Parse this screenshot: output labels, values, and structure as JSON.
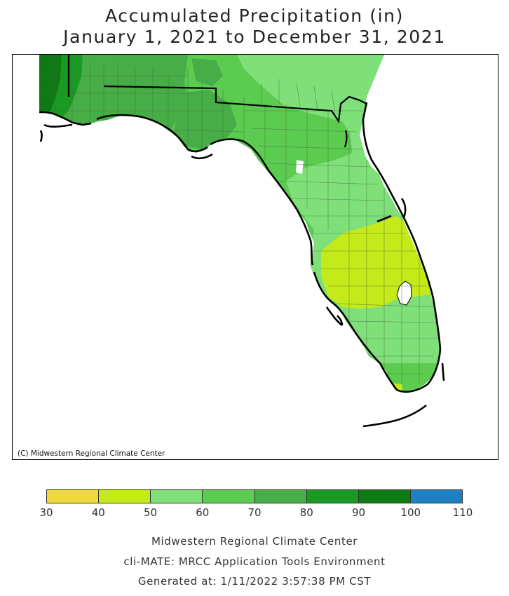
{
  "title_line1": "Accumulated Precipitation (in)",
  "title_line2": "January 1, 2021 to December 31, 2021",
  "copyright": "(C) Midwestern Regional Climate Center",
  "legend": {
    "bins": [
      {
        "range": [
          30,
          40
        ],
        "color": "#f2d93b"
      },
      {
        "range": [
          40,
          50
        ],
        "color": "#c5ea1a"
      },
      {
        "range": [
          50,
          60
        ],
        "color": "#7fe07a"
      },
      {
        "range": [
          60,
          70
        ],
        "color": "#5bcc50"
      },
      {
        "range": [
          70,
          80
        ],
        "color": "#46ad47"
      },
      {
        "range": [
          80,
          90
        ],
        "color": "#189a23"
      },
      {
        "range": [
          90,
          100
        ],
        "color": "#0d7a14"
      },
      {
        "range": [
          100,
          110
        ],
        "color": "#1d7fc4"
      }
    ],
    "tick_labels": [
      "30",
      "40",
      "50",
      "60",
      "70",
      "80",
      "90",
      "100",
      "110"
    ]
  },
  "footer": {
    "line1": "Midwestern Regional Climate Center",
    "line2": "cli-MATE: MRCC Application Tools Environment",
    "line3": "Generated at: 1/11/2022 3:57:38 PM CST"
  },
  "map": {
    "region": "Florida",
    "precip_zones": [
      {
        "area": "far western panhandle",
        "bin": [
          90,
          100
        ]
      },
      {
        "area": "western panhandle",
        "bin": [
          80,
          90
        ]
      },
      {
        "area": "central panhandle and big bend",
        "bin": [
          70,
          80
        ]
      },
      {
        "area": "north and northeast Florida",
        "bin": [
          60,
          70
        ]
      },
      {
        "area": "northeast coast and central peninsula",
        "bin": [
          50,
          60
        ]
      },
      {
        "area": "southwest-central peninsula",
        "bin": [
          40,
          50
        ]
      },
      {
        "area": "south Florida",
        "bin": [
          50,
          60
        ]
      },
      {
        "area": "Cape Sable",
        "bin": [
          40,
          50
        ]
      }
    ]
  }
}
